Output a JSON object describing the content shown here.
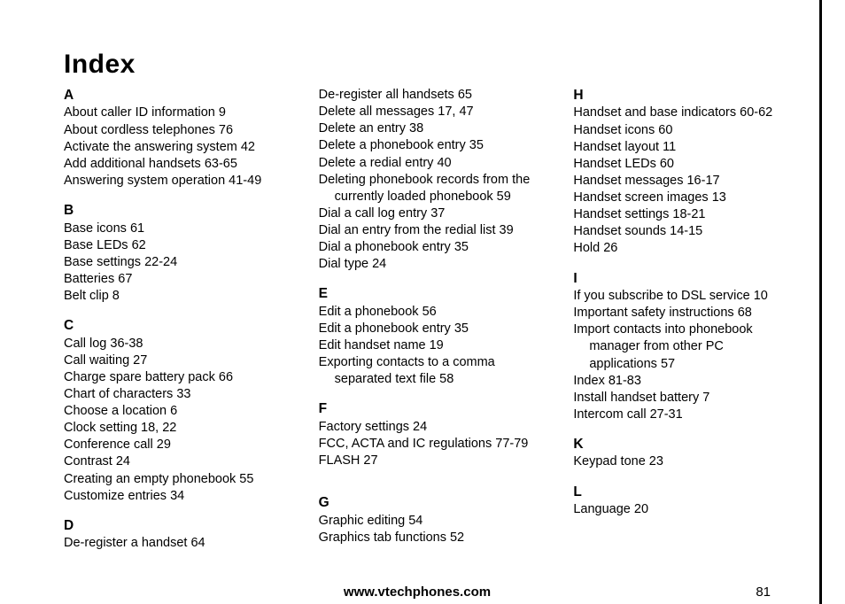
{
  "title": "Index",
  "footer": {
    "url": "www.vtechphones.com",
    "page": "81"
  },
  "columns": [
    [
      {
        "letter": "A",
        "first": true
      },
      {
        "text": "About caller ID information  9"
      },
      {
        "text": "About cordless telephones  76"
      },
      {
        "text": "Activate the answering system  42"
      },
      {
        "text": "Add additional handsets  63-65"
      },
      {
        "text": "Answering system operation  41-49"
      },
      {
        "letter": "B"
      },
      {
        "text": "Base icons  61"
      },
      {
        "text": "Base LEDs  62"
      },
      {
        "text": "Base settings  22-24"
      },
      {
        "text": "Batteries  67"
      },
      {
        "text": "Belt clip  8"
      },
      {
        "letter": "C"
      },
      {
        "text": "Call log  36-38"
      },
      {
        "text": "Call waiting  27"
      },
      {
        "text": "Charge spare battery pack  66"
      },
      {
        "text": "Chart of characters  33"
      },
      {
        "text": "Choose a location  6"
      },
      {
        "text": "Clock setting  18, 22"
      },
      {
        "text": "Conference call  29"
      },
      {
        "text": "Contrast  24"
      },
      {
        "text": "Creating an empty phonebook  55"
      },
      {
        "text": "Customize entries  34"
      },
      {
        "letter": "D"
      },
      {
        "text": "De-register a handset  64"
      }
    ],
    [
      {
        "text": "De-register all handsets  65",
        "first": true
      },
      {
        "text": "Delete all messages  17, 47"
      },
      {
        "text": "Delete an entry  38"
      },
      {
        "text": "Delete a phonebook entry  35"
      },
      {
        "text": "Delete a redial entry  40"
      },
      {
        "text": "Deleting phonebook records from the currently loaded phonebook  59",
        "indent": true
      },
      {
        "text": "Dial a call log entry  37"
      },
      {
        "text": "Dial an entry from the redial list  39"
      },
      {
        "text": "Dial a phonebook entry  35"
      },
      {
        "text": "Dial type  24"
      },
      {
        "letter": "E"
      },
      {
        "text": "Edit a phonebook  56"
      },
      {
        "text": "Edit a phonebook entry  35"
      },
      {
        "text": "Edit handset name  19"
      },
      {
        "text": "Exporting contacts to a comma separated text file  58",
        "indent": true
      },
      {
        "letter": "F"
      },
      {
        "text": "Factory settings  24"
      },
      {
        "text": "FCC, ACTA and IC regulations  77-79"
      },
      {
        "text": "FLASH  27"
      },
      {
        "spacer": true
      },
      {
        "letter": "G"
      },
      {
        "text": "Graphic editing  54"
      },
      {
        "text": "Graphics tab functions  52"
      }
    ],
    [
      {
        "letter": "H",
        "first": true
      },
      {
        "text": "Handset and base indicators  60-62"
      },
      {
        "text": "Handset icons  60"
      },
      {
        "text": "Handset layout  11"
      },
      {
        "text": "Handset LEDs  60"
      },
      {
        "text": "Handset messages  16-17"
      },
      {
        "text": "Handset screen images  13"
      },
      {
        "text": "Handset settings  18-21"
      },
      {
        "text": "Handset sounds  14-15"
      },
      {
        "text": "Hold  26"
      },
      {
        "letter": "I"
      },
      {
        "text": "If you subscribe to DSL service  10"
      },
      {
        "text": "Important safety instructions  68"
      },
      {
        "text": "Import contacts into phonebook manager from other PC applications  57",
        "indent": true
      },
      {
        "text": "Index  81-83"
      },
      {
        "text": "Install handset battery  7"
      },
      {
        "text": "Intercom call  27-31"
      },
      {
        "letter": "K"
      },
      {
        "text": "Keypad tone  23"
      },
      {
        "letter": "L"
      },
      {
        "text": "Language  20"
      }
    ]
  ]
}
